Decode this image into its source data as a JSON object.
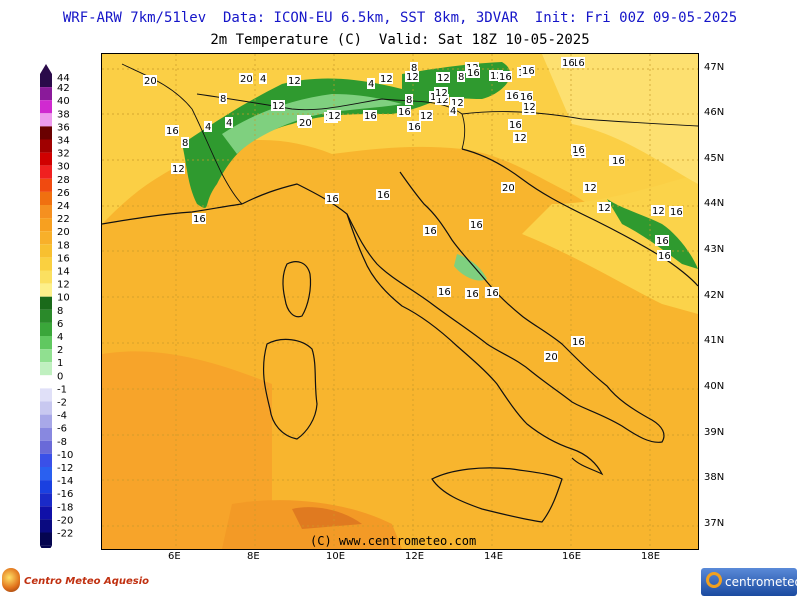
{
  "header": {
    "line1": "WRF-ARW 7km/51lev  Data: ICON-EU 6.5km, SST 8km, 3DVAR  Init: Fri 00Z 09-05-2025",
    "line2": "2m Temperature (C)  Valid: Sat 18Z 10-05-2025"
  },
  "legend": {
    "items": [
      {
        "label": "44",
        "color": "#2a0a4a"
      },
      {
        "label": "42",
        "color": "#8a1a9a"
      },
      {
        "label": "40",
        "color": "#d02ad0"
      },
      {
        "label": "38",
        "color": "#ee9aee"
      },
      {
        "label": "36",
        "color": "#6a0000"
      },
      {
        "label": "34",
        "color": "#a00000"
      },
      {
        "label": "32",
        "color": "#d00000"
      },
      {
        "label": "30",
        "color": "#f02020"
      },
      {
        "label": "28",
        "color": "#f04a10"
      },
      {
        "label": "26",
        "color": "#f07010"
      },
      {
        "label": "24",
        "color": "#f59020"
      },
      {
        "label": "22",
        "color": "#f7a020"
      },
      {
        "label": "20",
        "color": "#f8b02a"
      },
      {
        "label": "18",
        "color": "#f8c030"
      },
      {
        "label": "16",
        "color": "#fad040"
      },
      {
        "label": "14",
        "color": "#fbe060"
      },
      {
        "label": "12",
        "color": "#fdf08a"
      },
      {
        "label": "10",
        "color": "#1a6a1a"
      },
      {
        "label": "8",
        "color": "#2a8a2a"
      },
      {
        "label": "6",
        "color": "#3aa63a"
      },
      {
        "label": "4",
        "color": "#60c860"
      },
      {
        "label": "2",
        "color": "#90e090"
      },
      {
        "label": "1",
        "color": "#c0f0c0"
      },
      {
        "label": "0",
        "color": "#ffffff"
      },
      {
        "label": "-1",
        "color": "#e0e0f8"
      },
      {
        "label": "-2",
        "color": "#c8c8f0"
      },
      {
        "label": "-4",
        "color": "#a8a8e8"
      },
      {
        "label": "-6",
        "color": "#8888e0"
      },
      {
        "label": "-8",
        "color": "#6a6ad8"
      },
      {
        "label": "-10",
        "color": "#3a50e8"
      },
      {
        "label": "-12",
        "color": "#2a60f0"
      },
      {
        "label": "-14",
        "color": "#1a40e0"
      },
      {
        "label": "-16",
        "color": "#1a2ac8"
      },
      {
        "label": "-18",
        "color": "#1010a8"
      },
      {
        "label": "-20",
        "color": "#0a0a80"
      },
      {
        "label": "-22",
        "color": "#050550"
      }
    ]
  },
  "map": {
    "colors": {
      "base": "#f8b52e",
      "warm": "#f7a42a",
      "cool": "#fbcf45",
      "cooler": "#fde070",
      "green": "#2f9a2f",
      "green_light": "#7fd07f",
      "coast": "#111111",
      "border": "#111111",
      "grid": "#c89a2a"
    },
    "lat_labels": [
      "47N",
      "46N",
      "45N",
      "44N",
      "43N",
      "42N",
      "41N",
      "40N",
      "39N",
      "38N",
      "37N"
    ],
    "lon_labels": [
      "6E",
      "8E",
      "10E",
      "12E",
      "14E",
      "16E",
      "18E"
    ],
    "contour_labels": [
      "20",
      "20",
      "4",
      "16",
      "12",
      "8",
      "4",
      "8",
      "12",
      "12",
      "12",
      "16",
      "12",
      "12",
      "8",
      "12",
      "12",
      "16",
      "16",
      "4",
      "4",
      "12",
      "20",
      "12",
      "12",
      "16",
      "16",
      "16",
      "8",
      "4",
      "16",
      "16",
      "12",
      "12",
      "16",
      "12",
      "12",
      "8",
      "12",
      "12",
      "16",
      "16",
      "16",
      "16",
      "16",
      "16",
      "12",
      "12",
      "16",
      "16",
      "20",
      "12",
      "12",
      "16",
      "16",
      "16",
      "16",
      "16",
      "16",
      "16",
      "16",
      "16",
      "16",
      "16",
      "16",
      "20",
      "16"
    ]
  },
  "copyright": "(C) www.centrometeo.com",
  "logos": {
    "left": "Centro Meteo Aquesio",
    "right": "centrometeo"
  }
}
